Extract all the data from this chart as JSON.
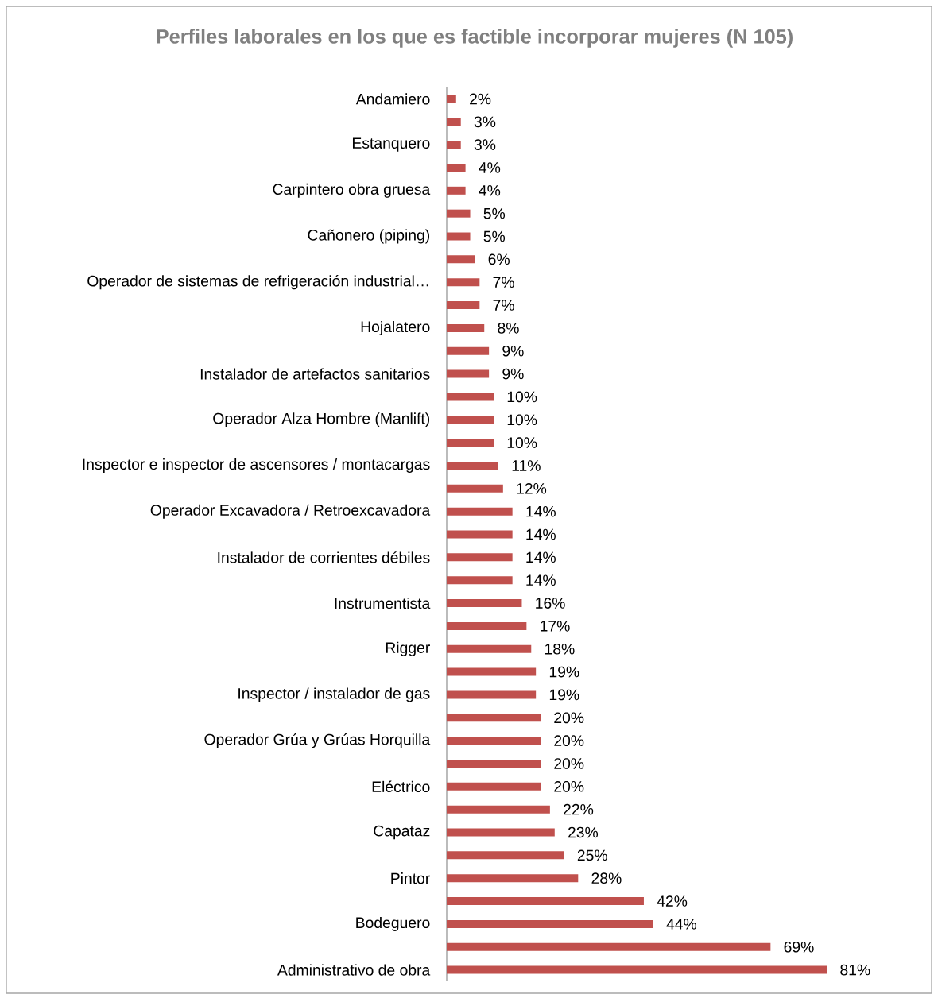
{
  "chart_data": {
    "type": "bar",
    "orientation": "horizontal",
    "title": "Perfiles laborales en los que es factible incorporar mujeres (N 105)",
    "categories": [
      "Andamiero",
      null,
      "Estanquero",
      null,
      "Carpintero obra gruesa",
      null,
      "Cañonero (piping)",
      null,
      "Operador de sistemas de refrigeración industrial…",
      null,
      "Hojalatero",
      null,
      "Instalador de artefactos sanitarios",
      null,
      "Operador Alza Hombre (Manlift)",
      null,
      "Inspector e inspector de ascensores / montacargas",
      null,
      "Operador Excavadora / Retroexcavadora",
      null,
      "Instalador de corrientes débiles",
      null,
      "Instrumentista",
      null,
      "Rigger",
      null,
      "Inspector / instalador de gas",
      null,
      "Operador Grúa y Grúas Horquilla",
      null,
      "Eléctrico",
      null,
      "Capataz",
      null,
      "Pintor",
      null,
      "Bodeguero",
      null,
      "Administrativo de obra"
    ],
    "values": [
      2,
      3,
      3,
      4,
      4,
      5,
      5,
      6,
      7,
      7,
      8,
      9,
      9,
      10,
      10,
      10,
      11,
      12,
      14,
      14,
      14,
      14,
      16,
      17,
      18,
      19,
      19,
      20,
      20,
      20,
      20,
      22,
      23,
      25,
      28,
      42,
      44,
      69,
      81
    ],
    "value_labels": [
      "2%",
      "3%",
      "3%",
      "4%",
      "4%",
      "5%",
      "5%",
      "6%",
      "7%",
      "7%",
      "8%",
      "9%",
      "9%",
      "10%",
      "10%",
      "10%",
      "11%",
      "12%",
      "14%",
      "14%",
      "14%",
      "14%",
      "16%",
      "17%",
      "18%",
      "19%",
      "19%",
      "20%",
      "20%",
      "20%",
      "20%",
      "22%",
      "23%",
      "25%",
      "28%",
      "42%",
      "44%",
      "69%",
      "81%"
    ],
    "color": "#c0504d"
  }
}
